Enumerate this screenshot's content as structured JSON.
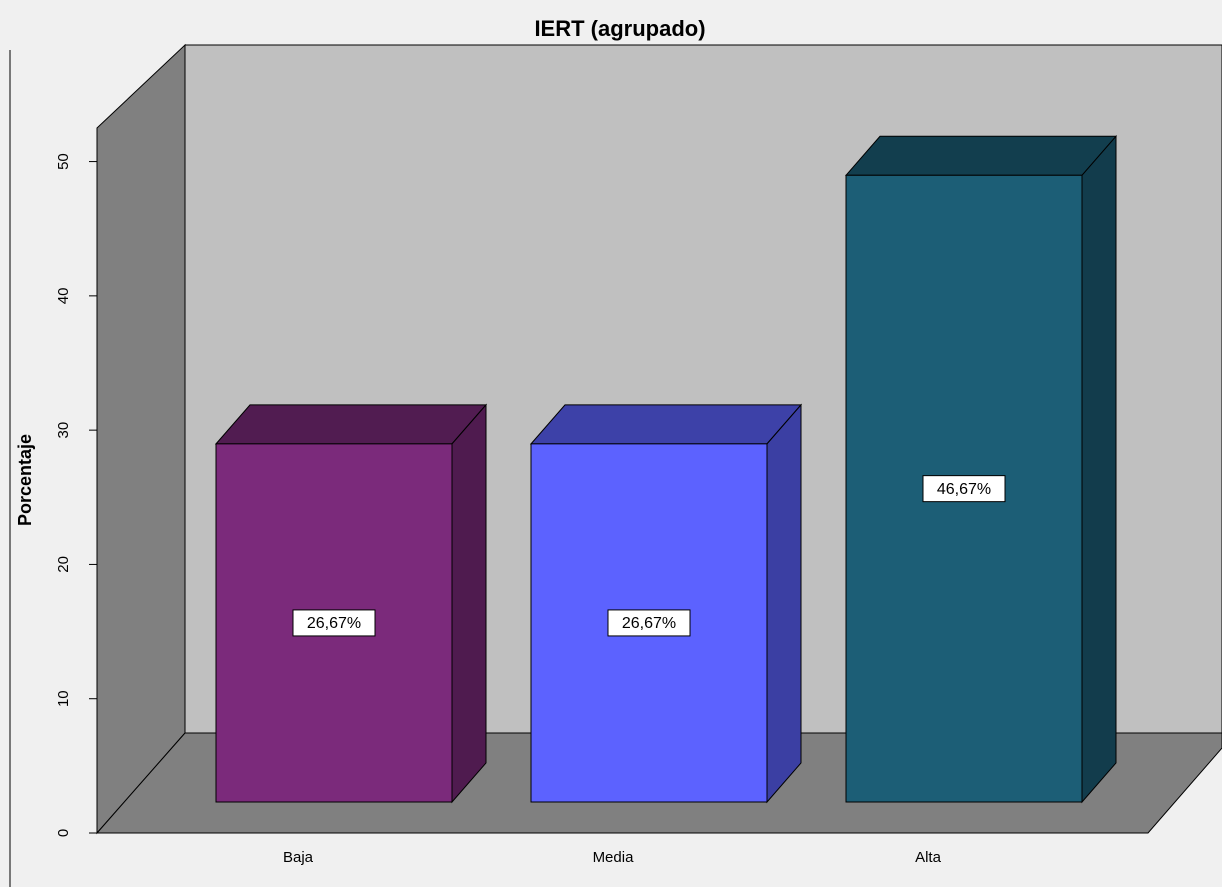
{
  "chart_data": {
    "type": "bar3d",
    "title": "IERT (agrupado)",
    "y_label": "Porcentaje",
    "categories": [
      "Baja",
      "Media",
      "Alta"
    ],
    "values": [
      26.67,
      26.67,
      46.67
    ],
    "value_labels": [
      "26,67%",
      "26,67%",
      "46,67%"
    ],
    "colors": [
      "#7b2a7b",
      "#5c62ff",
      "#1c5e76"
    ],
    "ylim": [
      0,
      52.5
    ],
    "yticks": [
      0,
      10,
      20,
      30,
      40,
      50
    ]
  }
}
